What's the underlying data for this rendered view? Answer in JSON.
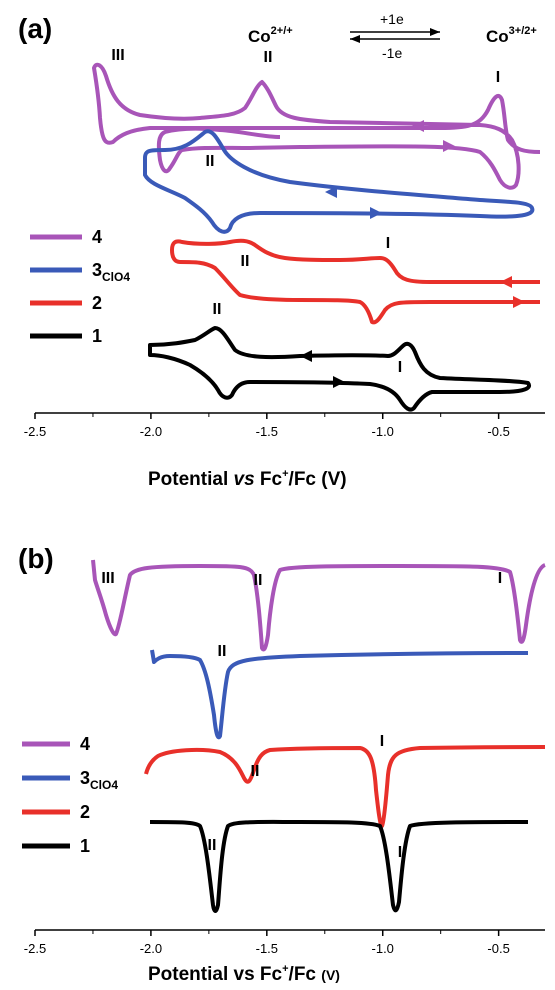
{
  "chart_data": [
    {
      "panel": "(a)",
      "type": "line",
      "subtype": "cyclic voltammogram",
      "xlabel": {
        "prefix": "Potential ",
        "italic": "vs",
        "mid": " Fc",
        "sup": "+",
        "suffix": "/Fc (V)"
      },
      "xlim": [
        -2.5,
        -0.3
      ],
      "x_ticks": [
        -2.5,
        -2.0,
        -1.5,
        -1.0,
        -0.5
      ],
      "x_tick_labels": [
        "-2.5",
        "-2.0",
        "-1.5",
        "-1.0",
        "-0.5"
      ],
      "y_axis_shown": false,
      "redox_couples": [
        {
          "base": "Co",
          "sup": "2+/+",
          "x": -1.55
        },
        {
          "base": "Co",
          "sup": "3+/2+",
          "x": -0.45
        }
      ],
      "electron_arrows": {
        "forward": "+1e",
        "reverse": "-1e"
      },
      "legend": [
        {
          "main": "4",
          "sub": "",
          "color": "#a855b8"
        },
        {
          "main": "3",
          "sub": "ClO4",
          "color": "#3a5ab8"
        },
        {
          "main": "2",
          "sub": "",
          "color": "#e8302a"
        },
        {
          "main": "1",
          "sub": "",
          "color": "#000000"
        }
      ],
      "series": [
        {
          "name": "4",
          "color": "#a855b8",
          "x_range": [
            -2.22,
            -0.3
          ],
          "peak_labels": [
            {
              "text": "III",
              "x": -2.15
            },
            {
              "text": "II",
              "x": -1.53
            },
            {
              "text": "I",
              "x": -0.52
            }
          ]
        },
        {
          "name": "3ClO4",
          "color": "#3a5ab8",
          "x_range": [
            -2.0,
            -0.4
          ],
          "peak_labels": [
            {
              "text": "II",
              "x": -1.78
            }
          ]
        },
        {
          "name": "2",
          "color": "#e8302a",
          "x_range": [
            -1.88,
            -0.4
          ],
          "peak_labels": [
            {
              "text": "II",
              "x": -1.57
            },
            {
              "text": "I",
              "x": -1.0
            }
          ]
        },
        {
          "name": "1",
          "color": "#000000",
          "x_range": [
            -2.0,
            -0.4
          ],
          "peak_labels": [
            {
              "text": "II",
              "x": -1.72
            },
            {
              "text": "I",
              "x": -0.93
            }
          ]
        }
      ]
    },
    {
      "panel": "(b)",
      "type": "line",
      "subtype": "differential pulse voltammogram",
      "xlabel": {
        "prefix": "Potential vs Fc",
        "sup": "+",
        "suffix": "/Fc ",
        "small": "(V)"
      },
      "xlim": [
        -2.5,
        -0.3
      ],
      "x_ticks": [
        -2.5,
        -2.0,
        -1.5,
        -1.0,
        -0.5
      ],
      "x_tick_labels": [
        "-2.5",
        "-2.0",
        "-1.5",
        "-1.0",
        "-0.5"
      ],
      "y_axis_shown": false,
      "legend": [
        {
          "main": "4",
          "sub": "",
          "color": "#a855b8"
        },
        {
          "main": "3",
          "sub": "ClO4",
          "color": "#3a5ab8"
        },
        {
          "main": "2",
          "sub": "",
          "color": "#e8302a"
        },
        {
          "main": "1",
          "sub": "",
          "color": "#000000"
        }
      ],
      "series": [
        {
          "name": "4",
          "color": "#a855b8",
          "x_range": [
            -2.24,
            -0.3
          ],
          "peaks_x": [
            -2.14,
            -1.51,
            -0.51
          ],
          "peak_labels": [
            {
              "text": "III",
              "x": -2.2
            },
            {
              "text": "II",
              "x": -1.52
            },
            {
              "text": "I",
              "x": -0.52
            }
          ]
        },
        {
          "name": "3ClO4",
          "color": "#3a5ab8",
          "x_range": [
            -1.99,
            -0.4
          ],
          "peaks_x": [
            -1.7
          ],
          "peak_labels": [
            {
              "text": "II",
              "x": -1.73
            }
          ]
        },
        {
          "name": "2",
          "color": "#e8302a",
          "x_range": [
            -1.88,
            -0.3
          ],
          "peaks_x": [
            -1.56,
            -1.02
          ],
          "peak_labels": [
            {
              "text": "II",
              "x": -1.55
            },
            {
              "text": "I",
              "x": -1.02
            }
          ]
        },
        {
          "name": "1",
          "color": "#000000",
          "x_range": [
            -2.0,
            -0.4
          ],
          "peaks_x": [
            -1.71,
            -0.95
          ],
          "peak_labels": [
            {
              "text": "II",
              "x": -1.74
            },
            {
              "text": "I",
              "x": -0.93
            }
          ]
        }
      ]
    }
  ]
}
